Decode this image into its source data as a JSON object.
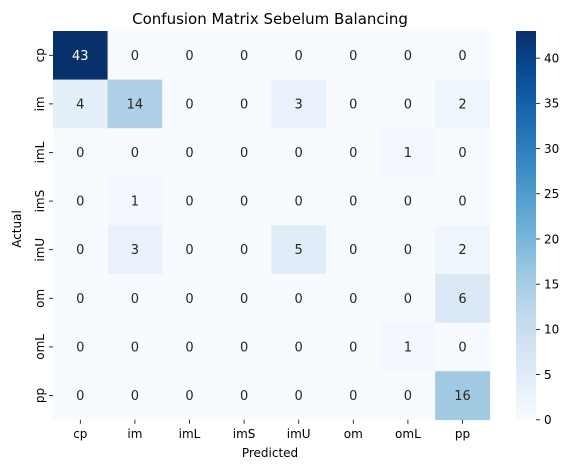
{
  "chart_data": {
    "type": "heatmap",
    "title": "Confusion Matrix Sebelum Balancing",
    "xlabel": "Predicted",
    "ylabel": "Actual",
    "x_categories": [
      "cp",
      "im",
      "imL",
      "imS",
      "imU",
      "om",
      "omL",
      "pp"
    ],
    "y_categories": [
      "cp",
      "im",
      "imL",
      "imS",
      "imU",
      "om",
      "omL",
      "pp"
    ],
    "values": [
      [
        43,
        0,
        0,
        0,
        0,
        0,
        0,
        0
      ],
      [
        4,
        14,
        0,
        0,
        3,
        0,
        0,
        2
      ],
      [
        0,
        0,
        0,
        0,
        0,
        0,
        1,
        0
      ],
      [
        0,
        1,
        0,
        0,
        0,
        0,
        0,
        0
      ],
      [
        0,
        3,
        0,
        0,
        5,
        0,
        0,
        2
      ],
      [
        0,
        0,
        0,
        0,
        0,
        0,
        0,
        6
      ],
      [
        0,
        0,
        0,
        0,
        0,
        0,
        1,
        0
      ],
      [
        0,
        0,
        0,
        0,
        0,
        0,
        0,
        16
      ]
    ],
    "colorbar": {
      "colormap": "Blues",
      "range": [
        0,
        43
      ],
      "ticks": [
        0,
        5,
        10,
        15,
        20,
        25,
        30,
        35,
        40
      ]
    }
  }
}
